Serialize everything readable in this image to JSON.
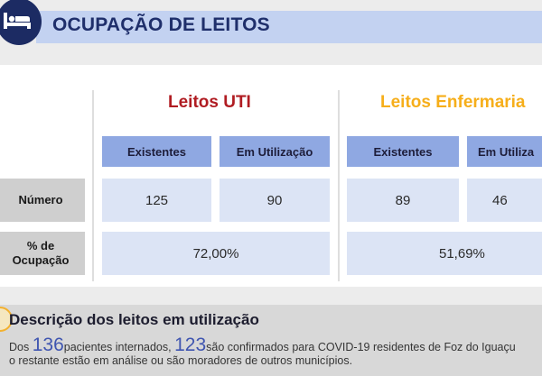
{
  "header": {
    "title": "OCUPAÇÃO DE LEITOS",
    "icon": "bed-icon"
  },
  "groups": {
    "uti": {
      "title": "Leitos UTI",
      "existentes_label": "Existentes",
      "utilizacao_label": "Em Utilização",
      "existentes": "125",
      "utilizacao": "90",
      "ocupacao": "72,00%"
    },
    "enfermaria": {
      "title": "Leitos Enfermaria",
      "existentes_label": "Existentes",
      "utilizacao_label": "Em Utiliza",
      "existentes": "89",
      "utilizacao": "46",
      "ocupacao": "51,69%"
    }
  },
  "rows": {
    "numero_label": "Número",
    "ocupacao_label_line1": "% de",
    "ocupacao_label_line2": "Ocupação"
  },
  "description": {
    "title": "Descrição dos leitos em utilização",
    "text_before": "Dos",
    "total_internados": "136",
    "text_mid": "pacientes internados,",
    "confirmados": "123",
    "text_after": "são confirmados para COVID-19 residentes de Foz do Iguaçu",
    "line2": "o restante estão em análise ou são moradores de outros municípios."
  },
  "colors": {
    "uti_title": "#b01c22",
    "enfermaria_title": "#f6ae1a",
    "header_band": "#c3d2f1",
    "subheader": "#8fa8e2",
    "value_cell": "#dce4f5"
  }
}
